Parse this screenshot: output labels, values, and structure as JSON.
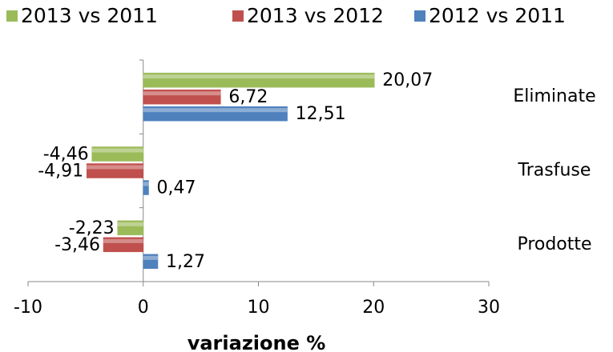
{
  "chart_data": {
    "type": "hbar",
    "x_label": "variazione %",
    "categories": [
      "Eliminate",
      "Trasfuse",
      "Prodotte"
    ],
    "series": [
      {
        "name": "2013 vs 2011",
        "color": "#9bbb59",
        "values": [
          20.07,
          -4.46,
          -2.23
        ],
        "value_labels": [
          "20,07",
          "-4,46",
          "-2,23"
        ]
      },
      {
        "name": "2013 vs 2012",
        "color": "#c0504d",
        "values": [
          6.72,
          -4.91,
          -3.46
        ],
        "value_labels": [
          "6,72",
          "-4,91",
          "-3,46"
        ]
      },
      {
        "name": "2012 vs 2011",
        "color": "#4f81bd",
        "values": [
          12.51,
          0.47,
          1.27
        ],
        "value_labels": [
          "12,51",
          "0,47",
          "1,27"
        ]
      }
    ],
    "xlim": [
      -10,
      30
    ],
    "xticks": [
      -10,
      0,
      10,
      20,
      30
    ],
    "legend": "top"
  }
}
